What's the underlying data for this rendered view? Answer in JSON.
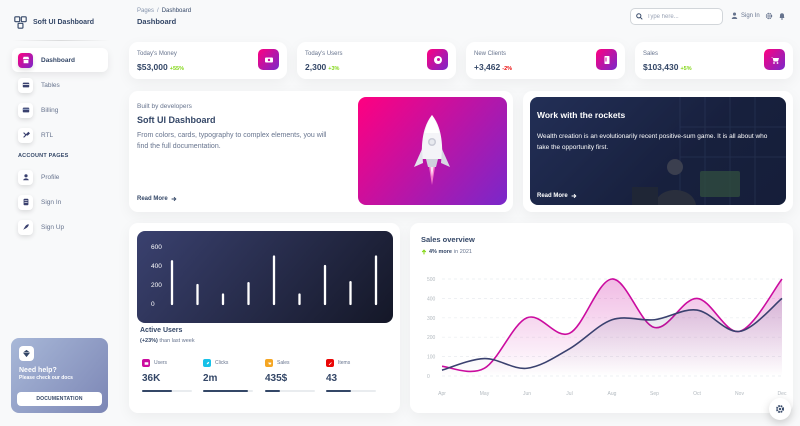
{
  "brand": {
    "name": "Soft UI Dashboard"
  },
  "sidebar": {
    "items": [
      {
        "label": "Dashboard",
        "icon": "shop-icon",
        "active": true
      },
      {
        "label": "Tables",
        "icon": "table-icon"
      },
      {
        "label": "Billing",
        "icon": "credit-card-icon"
      },
      {
        "label": "RTL",
        "icon": "tools-icon"
      }
    ],
    "section_title": "ACCOUNT PAGES",
    "account_items": [
      {
        "label": "Profile",
        "icon": "user-icon"
      },
      {
        "label": "Sign In",
        "icon": "document-icon"
      },
      {
        "label": "Sign Up",
        "icon": "rocket-icon"
      }
    ],
    "help": {
      "title": "Need help?",
      "subtitle": "Please check our docs",
      "button": "DOCUMENTATION"
    }
  },
  "navbar": {
    "breadcrumb_root": "Pages",
    "breadcrumb_sep": "/",
    "breadcrumb_current": "Dashboard",
    "title": "Dashboard",
    "search_placeholder": "Type here...",
    "signin": "Sign In"
  },
  "stats": [
    {
      "label": "Today's Money",
      "value": "$53,000",
      "change": "+55%",
      "trend": "up",
      "icon": "money-icon"
    },
    {
      "label": "Today's Users",
      "value": "2,300",
      "change": "+3%",
      "trend": "up",
      "icon": "globe-icon"
    },
    {
      "label": "New Clients",
      "value": "+3,462",
      "change": "-2%",
      "trend": "down",
      "icon": "document-icon"
    },
    {
      "label": "Sales",
      "value": "$103,430",
      "change": "+5%",
      "trend": "up",
      "icon": "cart-icon"
    }
  ],
  "developers": {
    "small": "Built by developers",
    "title": "Soft UI Dashboard",
    "description": "From colors, cards, typography to complex elements, you will find the full documentation.",
    "link": "Read More"
  },
  "rockets": {
    "title": "Work with the rockets",
    "description": "Wealth creation is an evolutionarily recent positive-sum game. It is all about who take the opportunity first.",
    "link": "Read More"
  },
  "active_users": {
    "title": "Active Users",
    "sub_bold": "(+23%)",
    "sub": "than last week",
    "kpis": [
      {
        "label": "Users",
        "value": "36K",
        "progress": 0.6,
        "color": "#cb0c9f"
      },
      {
        "label": "Clicks",
        "value": "2m",
        "progress": 0.9,
        "color": "#17c1e8"
      },
      {
        "label": "Sales",
        "value": "435$",
        "progress": 0.3,
        "color": "#f53939"
      },
      {
        "label": "Items",
        "value": "43",
        "progress": 0.5,
        "color": "#ea0606"
      }
    ]
  },
  "sales_overview": {
    "title": "Sales overview",
    "sub_bold": "4% more",
    "sub": "in 2021"
  },
  "chart_data": [
    {
      "type": "bar",
      "yticks": [
        "600",
        "400",
        "200",
        "0"
      ],
      "ylim": [
        0,
        600
      ],
      "values": [
        450,
        200,
        100,
        220,
        500,
        100,
        400,
        230,
        500
      ],
      "color": "#ffffff"
    },
    {
      "type": "line",
      "categories": [
        "Apr",
        "May",
        "Jun",
        "Jul",
        "Aug",
        "Sep",
        "Oct",
        "Nov",
        "Dec"
      ],
      "yticks": [
        "500",
        "400",
        "300",
        "200",
        "100",
        "0"
      ],
      "ylim": [
        0,
        500
      ],
      "series": [
        {
          "values": [
            50,
            40,
            300,
            220,
            500,
            250,
            400,
            230,
            500
          ],
          "color": "#cb0c9f"
        },
        {
          "values": [
            30,
            90,
            40,
            140,
            290,
            290,
            340,
            230,
            400
          ],
          "color": "#3a416f"
        }
      ]
    }
  ]
}
